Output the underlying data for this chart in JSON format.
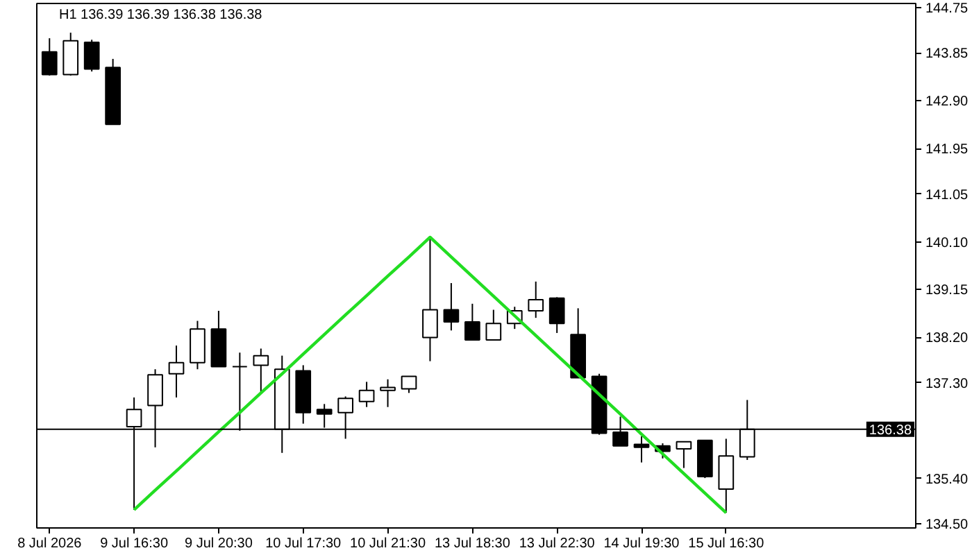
{
  "chart_data": {
    "type": "candlestick",
    "title": "H1  136.39 136.39 136.38 136.38",
    "categories": [
      "8 Jul 2026",
      null,
      null,
      null,
      "9 Jul 16:30",
      null,
      null,
      null,
      "9 Jul 20:30",
      null,
      null,
      null,
      "10 Jul 17:30",
      null,
      null,
      null,
      "10 Jul 21:30",
      null,
      null,
      null,
      "13 Jul 18:30",
      null,
      null,
      null,
      "13 Jul 22:30",
      null,
      null,
      null,
      "14 Jul 19:30",
      null,
      null,
      null,
      "15 Jul 16:30",
      null
    ],
    "ohlc": [
      [
        143.87,
        144.14,
        143.4,
        143.42
      ],
      [
        143.42,
        144.25,
        143.4,
        144.09
      ],
      [
        144.06,
        144.11,
        143.48,
        143.53
      ],
      [
        143.56,
        143.73,
        142.43,
        142.43
      ],
      [
        136.43,
        137.01,
        134.78,
        136.77
      ],
      [
        136.85,
        137.57,
        136.02,
        137.46
      ],
      [
        137.48,
        138.04,
        137.01,
        137.7
      ],
      [
        137.7,
        138.53,
        137.57,
        138.37
      ],
      [
        138.37,
        138.73,
        137.62,
        137.62
      ],
      [
        137.62,
        137.9,
        136.35,
        137.62
      ],
      [
        137.65,
        137.98,
        137.12,
        137.84
      ],
      [
        136.38,
        137.84,
        135.91,
        137.57
      ],
      [
        137.54,
        137.65,
        136.49,
        136.71
      ],
      [
        136.77,
        136.88,
        136.41,
        136.68
      ],
      [
        136.71,
        137.03,
        136.19,
        136.99
      ],
      [
        136.93,
        137.32,
        136.82,
        137.15
      ],
      [
        137.15,
        137.37,
        136.82,
        137.21
      ],
      [
        137.18,
        137.43,
        137.1,
        137.43
      ],
      [
        138.2,
        140.19,
        137.73,
        138.75
      ],
      [
        138.75,
        139.28,
        138.34,
        138.51
      ],
      [
        138.51,
        138.87,
        138.15,
        138.15
      ],
      [
        138.15,
        138.75,
        138.15,
        138.48
      ],
      [
        138.48,
        138.81,
        138.37,
        138.73
      ],
      [
        138.73,
        139.31,
        138.59,
        138.95
      ],
      [
        138.98,
        139.0,
        138.29,
        138.48
      ],
      [
        138.26,
        138.78,
        137.4,
        137.4
      ],
      [
        137.43,
        137.48,
        136.27,
        136.3
      ],
      [
        136.32,
        136.63,
        136.05,
        136.05
      ],
      [
        136.08,
        136.24,
        135.72,
        136.02
      ],
      [
        136.05,
        136.1,
        135.8,
        135.94
      ],
      [
        135.99,
        136.13,
        135.61,
        136.13
      ],
      [
        136.16,
        136.16,
        135.41,
        135.44
      ],
      [
        135.19,
        136.19,
        134.72,
        135.85
      ],
      [
        135.83,
        136.96,
        135.77,
        136.38
      ]
    ],
    "colors": [
      "#000000",
      "#ffffff",
      "#000000",
      "#000000",
      "#ffffff",
      "#ffffff",
      "#ffffff",
      "#ffffff",
      "#000000",
      "#000000",
      "#ffffff",
      "#ffffff",
      "#000000",
      "#000000",
      "#ffffff",
      "#ffffff",
      "#ffffff",
      "#ffffff",
      "#ffffff",
      "#000000",
      "#000000",
      "#ffffff",
      "#ffffff",
      "#ffffff",
      "#000000",
      "#000000",
      "#000000",
      "#000000",
      "#000000",
      "#000000",
      "#ffffff",
      "#000000",
      "#ffffff",
      "#ffffff"
    ],
    "series": [
      {
        "type": "line",
        "color": "#22dd22",
        "values": [
          null,
          null,
          null,
          null,
          134.78,
          135.17,
          135.55,
          135.94,
          136.33,
          136.71,
          137.1,
          137.48,
          137.87,
          138.26,
          138.65,
          139.03,
          139.42,
          139.8,
          140.19,
          139.8,
          139.41,
          139.02,
          138.63,
          138.24,
          137.85,
          137.46,
          137.07,
          136.68,
          136.28,
          135.89,
          135.5,
          135.11,
          134.72,
          null
        ]
      }
    ],
    "ylim": [
      134.42,
      144.83
    ],
    "yticks": [
      144.75,
      143.85,
      {
        "value": 142.9,
        "label": "142.90"
      },
      141.95,
      141.05,
      {
        "value": 140.1,
        "label": "140.10"
      },
      139.15,
      {
        "value": 138.2,
        "label": "138.20"
      },
      {
        "value": 137.3,
        "label": "137.30"
      },
      {
        "value": 135.4,
        "label": "135.40"
      },
      {
        "value": 134.5,
        "label": "134.50"
      }
    ],
    "ref_lines": [
      {
        "axis": "y",
        "value": 136.38,
        "label": "136.38",
        "color": "#000000"
      }
    ],
    "grid": false
  }
}
